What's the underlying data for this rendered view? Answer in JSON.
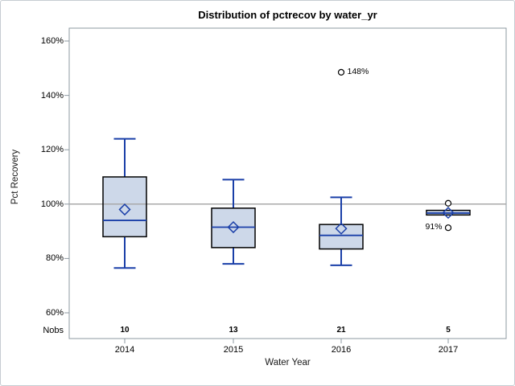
{
  "chart_data": {
    "type": "box",
    "title": "Distribution of pctrecov by water_yr",
    "xlabel": "Water Year",
    "ylabel": "Pct Recovery",
    "y_axis": {
      "min": 60,
      "max": 160,
      "tick_step": 20,
      "format": "percent",
      "tick_values": [
        160,
        140,
        120,
        100,
        80,
        60
      ],
      "tick_labels": [
        "160%",
        "140%",
        "120%",
        "100%",
        "80%",
        "60%"
      ]
    },
    "reference_line_y": 100,
    "grid": "single-reference-line-at-100",
    "legend": "none",
    "nobs_row_label": "Nobs",
    "categories": [
      "2014",
      "2015",
      "2016",
      "2017"
    ],
    "nobs": [
      10,
      13,
      21,
      5
    ],
    "series": [
      {
        "category": "2014",
        "n": 10,
        "whisker_low": 76.5,
        "q1": 88,
        "median": 94,
        "q3": 110,
        "whisker_high": 124,
        "mean": 98,
        "outliers": []
      },
      {
        "category": "2015",
        "n": 13,
        "whisker_low": 78,
        "q1": 84,
        "median": 91.5,
        "q3": 98.5,
        "whisker_high": 109,
        "mean": 91.5,
        "outliers": []
      },
      {
        "category": "2016",
        "n": 21,
        "whisker_low": 77.5,
        "q1": 83.5,
        "median": 88.5,
        "q3": 92.5,
        "whisker_high": 102.5,
        "mean": 91,
        "outliers": [
          {
            "value": 148.5,
            "label": "148%",
            "label_side": "right"
          }
        ]
      },
      {
        "category": "2017",
        "n": 5,
        "whisker_low": 96,
        "q1": 96,
        "median": 96.7,
        "q3": 97.7,
        "whisker_high": 97.7,
        "mean": 96.8,
        "outliers": [
          {
            "value": 100.3,
            "label": "",
            "label_side": "right"
          },
          {
            "value": 91.3,
            "label": "91%",
            "label_side": "left"
          }
        ]
      }
    ],
    "colors": {
      "box_fill": "#CDD8E9",
      "box_border": "#000000",
      "line_blue": "#1A3FA8",
      "reference_line": "#A9A9A9",
      "frame": "#8E99A2",
      "text": "#000000",
      "outlier_stroke": "#000000",
      "outlier_fill": "#FFFFFF"
    }
  }
}
